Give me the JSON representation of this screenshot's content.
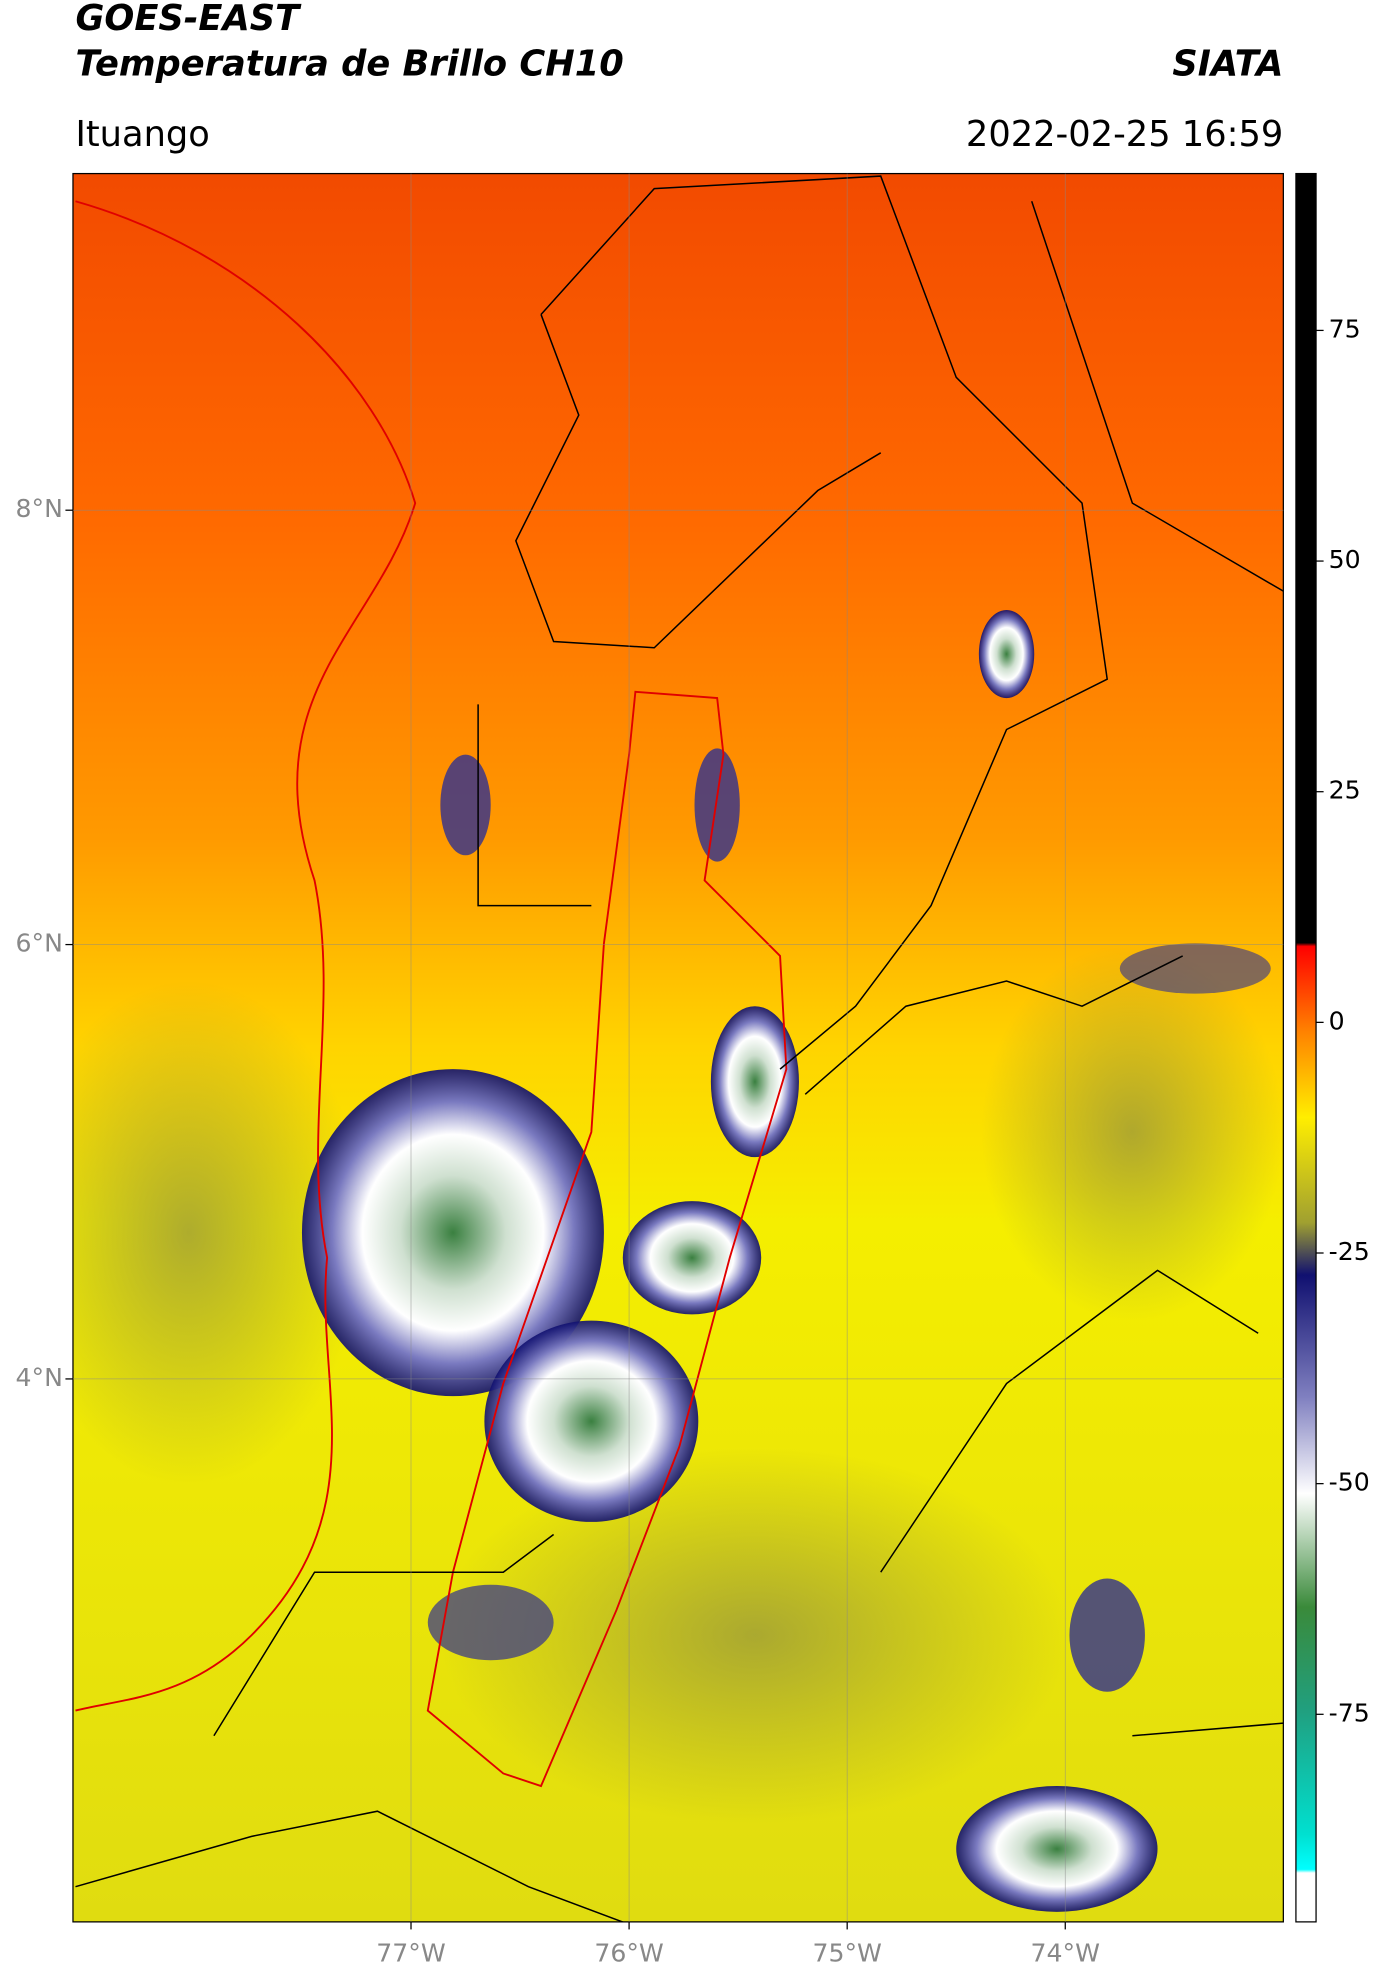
{
  "header": {
    "title": "GOES-EAST",
    "subtitle": "Temperatura de Brillo CH10",
    "source": "SIATA",
    "location": "Ituango",
    "datetime": "2022-02-25 16:59"
  },
  "map": {
    "xlim": [
      -78.55,
      -73.0
    ],
    "ylim": [
      1.5,
      9.55
    ],
    "xticks": [
      {
        "value": -77,
        "label": "77°W"
      },
      {
        "value": -76,
        "label": "76°W"
      },
      {
        "value": -75,
        "label": "75°W"
      },
      {
        "value": -74,
        "label": "74°W"
      }
    ],
    "yticks": [
      {
        "value": 8,
        "label": "8°N"
      },
      {
        "value": 6,
        "label": "6°N"
      },
      {
        "value": 4,
        "label": "4°N"
      }
    ],
    "grid": true
  },
  "colorbar": {
    "lim": [
      -97.5,
      92
    ],
    "ticks": [
      75,
      50,
      25,
      0,
      -25,
      -50,
      -75
    ]
  }
}
